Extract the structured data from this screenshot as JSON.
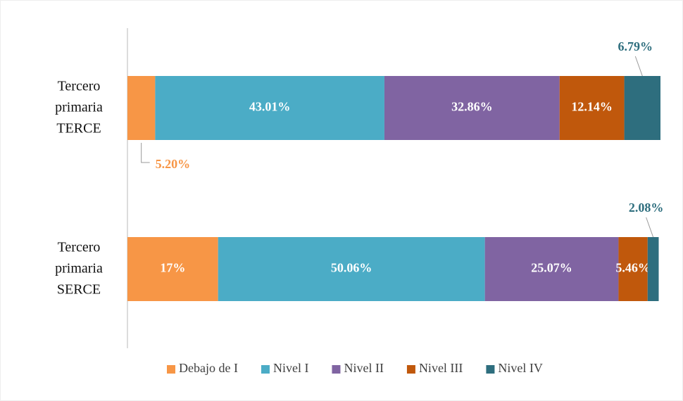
{
  "chart_data": {
    "type": "stacked-bar-horizontal",
    "categories": [
      "Tercero primaria TERCE",
      "Tercero primaria SERCE"
    ],
    "xlim": [
      0,
      100
    ],
    "legend": "bottom",
    "series": [
      {
        "name": "Debajo de I",
        "color": "#f79646",
        "values": [
          5.2,
          17
        ],
        "value_labels": [
          "5.20%",
          "17%"
        ]
      },
      {
        "name": "Nivel I",
        "color": "#4bacc6",
        "values": [
          43.01,
          50.06
        ],
        "value_labels": [
          "43.01%",
          "50.06%"
        ]
      },
      {
        "name": "Nivel II",
        "color": "#8064a2",
        "values": [
          32.86,
          25.07
        ],
        "value_labels": [
          "32.86%",
          "25.07%"
        ]
      },
      {
        "name": "Nivel III",
        "color": "#c0580c",
        "values": [
          12.14,
          5.46
        ],
        "value_labels": [
          "12.14%",
          "5.46%"
        ]
      },
      {
        "name": "Nivel IV",
        "color": "#2e6e7e",
        "values": [
          6.79,
          2.08
        ],
        "value_labels": [
          "6.79%",
          "2.08%"
        ]
      }
    ]
  }
}
